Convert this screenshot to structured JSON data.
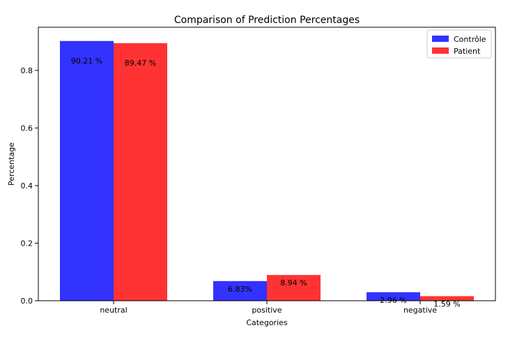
{
  "chart_data": {
    "type": "bar",
    "title": "Comparison of Prediction Percentages",
    "xlabel": "Categories",
    "ylabel": "Percentage",
    "categories": [
      "neutral",
      "positive",
      "negative"
    ],
    "series": [
      {
        "name": "Contrôle",
        "color": "#3333ff",
        "values": [
          0.9021,
          0.0683,
          0.0296
        ],
        "labels": [
          "90.21 %",
          "6.83%",
          "2.96 %"
        ]
      },
      {
        "name": "Patient",
        "color": "#ff3333",
        "values": [
          0.8947,
          0.0894,
          0.0159
        ],
        "labels": [
          "89.47 %",
          "8.94 %",
          "1.59 %"
        ]
      }
    ],
    "ylim": [
      0,
      0.95
    ],
    "yticks": [
      "0.0",
      "0.2",
      "0.4",
      "0.6",
      "0.8"
    ],
    "ytick_values": [
      0,
      0.2,
      0.4,
      0.6,
      0.8
    ],
    "grid": false,
    "legend": "top-right"
  }
}
